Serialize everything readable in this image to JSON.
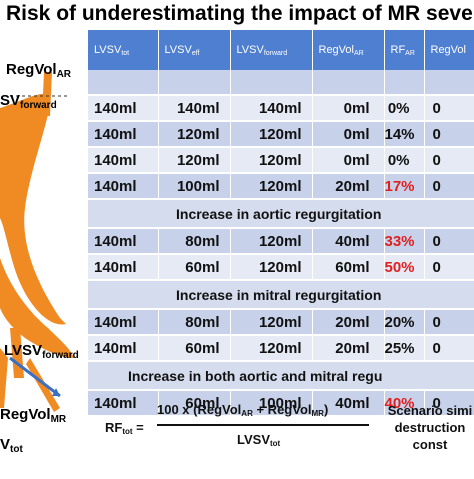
{
  "title": "Risk of underestimating the impact of MR severity b",
  "diagram": {
    "regvol_ar": "RegVol",
    "regvol_ar_sub": "AR",
    "lvsv_forward_top": "SV",
    "lvsv_forward_top_sub": "forward",
    "lvsv_forward": "LVSV",
    "lvsv_forward_sub": "forward",
    "regvol_mr": "RegVol",
    "regvol_mr_sub": "MR",
    "lvsv_tot": "V",
    "lvsv_tot_sub": "tot",
    "colors": {
      "orange": "#f08a22",
      "arrow": "#3a6fc4"
    }
  },
  "table": {
    "headers": [
      {
        "main": "LVSV",
        "sub": "tot"
      },
      {
        "main": "LVSV",
        "sub": "eff"
      },
      {
        "main": "LVSV",
        "sub": "forward"
      },
      {
        "main": "RegVol",
        "sub": "AR"
      },
      {
        "main": "RF",
        "sub": "AR"
      },
      {
        "main": "RegVol",
        "sub": ""
      }
    ],
    "blank_row": [
      "",
      "",
      "",
      "",
      "",
      ""
    ],
    "rows_a": [
      [
        "140ml",
        "140ml",
        "140ml",
        "0ml",
        "0%",
        "0"
      ],
      [
        "140ml",
        "120ml",
        "120ml",
        "0ml",
        "14%",
        "0"
      ],
      [
        "140ml",
        "120ml",
        "120ml",
        "0ml",
        "0%",
        "0"
      ],
      [
        "140ml",
        "100ml",
        "120ml",
        "20ml",
        "17%",
        "0"
      ]
    ],
    "section_aortic": "Increase in aortic regurgitation",
    "rows_b": [
      [
        "140ml",
        "80ml",
        "120ml",
        "40ml",
        "33%",
        "0"
      ],
      [
        "140ml",
        "60ml",
        "120ml",
        "60ml",
        "50%",
        "0"
      ]
    ],
    "section_mitral": "Increase in mitral regurgitation",
    "rows_c": [
      [
        "140ml",
        "80ml",
        "120ml",
        "20ml",
        "20%",
        "0"
      ],
      [
        "140ml",
        "60ml",
        "120ml",
        "20ml",
        "25%",
        "0"
      ]
    ],
    "section_both": "Increase in both aortic and mitral regu",
    "rows_d": [
      [
        "140ml",
        "60ml",
        "100ml",
        "40ml",
        "40%",
        "0"
      ]
    ],
    "red_color": "#e02020"
  },
  "formula": {
    "lhs": "RF",
    "lhs_sub": "tot",
    "eq": " =",
    "num_a": "100 x (RegVol",
    "num_a_sub": "AR",
    "num_b": " + RegVol",
    "num_b_sub": "MR",
    "num_c": ")",
    "den": "LVSV",
    "den_sub": "tot"
  },
  "note": {
    "line1": "Scenario simi",
    "line2": "destruction",
    "line3": "const"
  }
}
